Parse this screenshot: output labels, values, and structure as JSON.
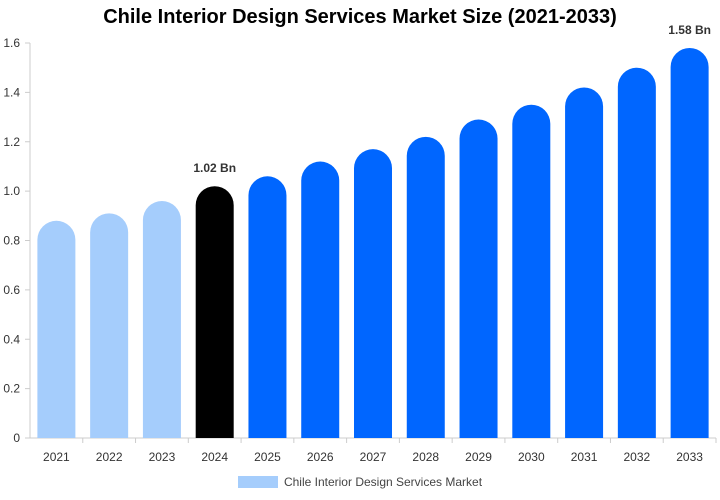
{
  "chart_data": {
    "type": "bar",
    "title": "Chile Interior Design Services Market Size (2021-2033)",
    "xlabel": "",
    "ylabel": "",
    "ylim": [
      0,
      1.6
    ],
    "yticks": [
      "0",
      "0.2",
      "0.4",
      "0.6",
      "0.8",
      "1.0",
      "1.2",
      "1.4",
      "1.6"
    ],
    "grid": false,
    "legend_position": "bottom",
    "categories": [
      "2021",
      "2022",
      "2023",
      "2024",
      "2025",
      "2026",
      "2027",
      "2028",
      "2029",
      "2030",
      "2031",
      "2032",
      "2033"
    ],
    "series": [
      {
        "name": "Chile Interior Design Services Market",
        "values": [
          0.88,
          0.91,
          0.96,
          1.02,
          1.06,
          1.12,
          1.17,
          1.22,
          1.29,
          1.35,
          1.42,
          1.5,
          1.58
        ],
        "colors": [
          "#a5cdfc",
          "#a5cdfc",
          "#a5cdfc",
          "#000000",
          "#0066ff",
          "#0066ff",
          "#0066ff",
          "#0066ff",
          "#0066ff",
          "#0066ff",
          "#0066ff",
          "#0066ff",
          "#0066ff"
        ]
      }
    ],
    "data_labels": [
      {
        "category": "2024",
        "text": "1.02 Bn"
      },
      {
        "category": "2033",
        "text": "1.58 Bn"
      }
    ],
    "legend_color": "#a5cdfc"
  }
}
